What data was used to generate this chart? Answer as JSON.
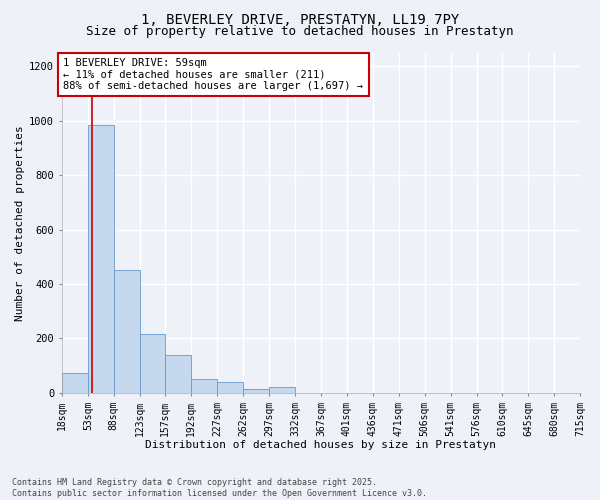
{
  "title_line1": "1, BEVERLEY DRIVE, PRESTATYN, LL19 7PY",
  "title_line2": "Size of property relative to detached houses in Prestatyn",
  "xlabel": "Distribution of detached houses by size in Prestatyn",
  "ylabel": "Number of detached properties",
  "bar_color": "#c5d8ee",
  "bar_edge_color": "#6699cc",
  "vline_color": "#cc0000",
  "vline_x": 59,
  "annotation_title": "1 BEVERLEY DRIVE: 59sqm",
  "annotation_line2": "← 11% of detached houses are smaller (211)",
  "annotation_line3": "88% of semi-detached houses are larger (1,697) →",
  "footer_line1": "Contains HM Land Registry data © Crown copyright and database right 2025.",
  "footer_line2": "Contains public sector information licensed under the Open Government Licence v3.0.",
  "bin_edges": [
    18,
    53,
    88,
    123,
    157,
    192,
    227,
    262,
    297,
    332,
    367,
    401,
    436,
    471,
    506,
    541,
    576,
    610,
    645,
    680,
    715
  ],
  "bar_heights": [
    75,
    985,
    450,
    215,
    140,
    50,
    40,
    15,
    20,
    0,
    0,
    0,
    0,
    0,
    0,
    0,
    0,
    0,
    0,
    0
  ],
  "ylim": [
    0,
    1250
  ],
  "yticks": [
    0,
    200,
    400,
    600,
    800,
    1000,
    1200
  ],
  "background_color": "#eef2f8",
  "grid_color": "#ffffff",
  "title_fontsize": 10,
  "subtitle_fontsize": 9,
  "axis_label_fontsize": 8,
  "tick_fontsize": 7,
  "annotation_fontsize": 7.5,
  "footer_fontsize": 6,
  "annotation_box_color": "#ffffff",
  "annotation_box_edge": "#cc0000"
}
